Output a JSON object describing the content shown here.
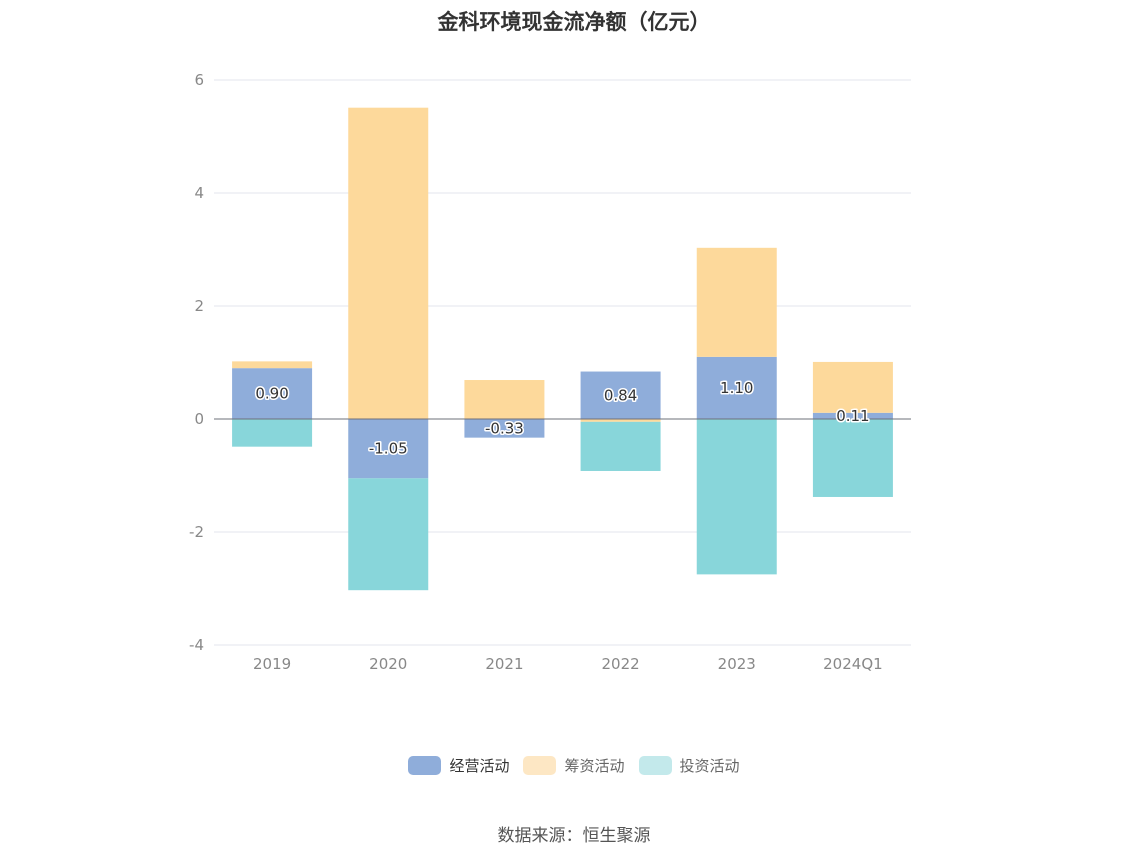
{
  "chart_data": {
    "type": "bar",
    "stacked": true,
    "title": "金科环境现金流净额（亿元）",
    "categories": [
      "2019",
      "2020",
      "2021",
      "2022",
      "2023",
      "2024Q1"
    ],
    "ylim": [
      -4,
      6
    ],
    "yticks": [
      "6",
      "4",
      "2",
      "0",
      "-2",
      "-4"
    ],
    "ytick_values": [
      6,
      4,
      2,
      0,
      -2,
      -4
    ],
    "grid": true,
    "legend_position": "bottom",
    "series": [
      {
        "name": "经营活动",
        "color": "#8fadda",
        "values": [
          0.9,
          -1.05,
          -0.33,
          0.84,
          1.1,
          0.11
        ],
        "labels": [
          "0.90",
          "-1.05",
          "-0.33",
          "0.84",
          "1.10",
          "0.11"
        ]
      },
      {
        "name": "筹资活动",
        "color": "#fdd99b",
        "values": [
          0.12,
          5.51,
          0.69,
          -0.05,
          1.93,
          0.9
        ]
      },
      {
        "name": "投资活动",
        "color": "#88d6da",
        "values": [
          -0.49,
          -1.98,
          0.0,
          -0.87,
          -2.75,
          -1.38
        ]
      }
    ]
  },
  "legend": {
    "items": [
      {
        "label": "经营活动",
        "color": "#8fadda"
      },
      {
        "label": "筹资活动",
        "color": "#fde7c4"
      },
      {
        "label": "投资活动",
        "color": "#c3e9eb"
      }
    ]
  },
  "source_note": "数据来源：恒生聚源"
}
